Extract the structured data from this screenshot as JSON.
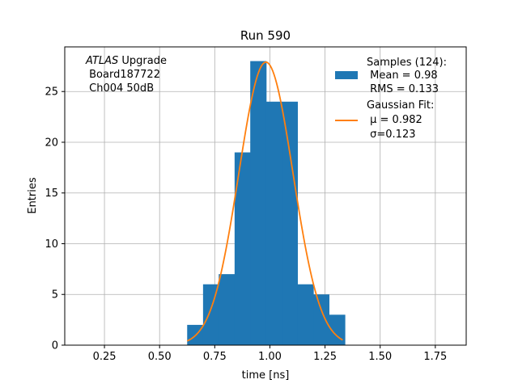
{
  "chart_data": {
    "type": "histogram",
    "title": "Run 590",
    "xlabel": "time [ns]",
    "ylabel": "Entries",
    "xlim": [
      0.07,
      1.89
    ],
    "ylim": [
      0,
      29.4
    ],
    "xticks": [
      0.25,
      0.5,
      0.75,
      1.0,
      1.25,
      1.5,
      1.75
    ],
    "xtick_labels": [
      "0.25",
      "0.50",
      "0.75",
      "1.00",
      "1.25",
      "1.50",
      "1.75"
    ],
    "yticks": [
      0,
      5,
      10,
      15,
      20,
      25
    ],
    "ytick_labels": [
      "0",
      "5",
      "10",
      "15",
      "20",
      "25"
    ],
    "grid": true,
    "bins": [
      {
        "x0": 0.625,
        "x1": 0.697,
        "count": 2
      },
      {
        "x0": 0.697,
        "x1": 0.768,
        "count": 6
      },
      {
        "x0": 0.768,
        "x1": 0.84,
        "count": 7
      },
      {
        "x0": 0.84,
        "x1": 0.911,
        "count": 19
      },
      {
        "x0": 0.911,
        "x1": 0.983,
        "count": 28
      },
      {
        "x0": 0.983,
        "x1": 1.054,
        "count": 24
      },
      {
        "x0": 1.054,
        "x1": 1.125,
        "count": 24
      },
      {
        "x0": 1.125,
        "x1": 1.197,
        "count": 6
      },
      {
        "x0": 1.197,
        "x1": 1.268,
        "count": 5
      },
      {
        "x0": 1.268,
        "x1": 1.34,
        "count": 3
      }
    ],
    "fit": {
      "amplitude": 27.9,
      "mu": 0.982,
      "sigma": 0.123,
      "x_range": [
        0.625,
        1.33
      ]
    },
    "colors": {
      "histogram": "#1f77b4",
      "fit": "#ff7f0e",
      "grid": "#b0b0b0"
    },
    "annotation": {
      "italic_part": "ATLAS",
      "line1_rest": " Upgrade",
      "line2": " Board187722",
      "line3": " Ch004 50dB"
    },
    "legend": {
      "location": "top-right",
      "samples": [
        "Samples (124):",
        " Mean = 0.98",
        " RMS = 0.133"
      ],
      "fit": [
        "Gaussian Fit:",
        " μ = 0.982",
        " σ=0.123"
      ]
    }
  }
}
